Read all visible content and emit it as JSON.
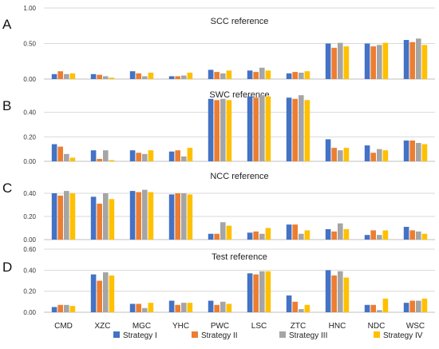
{
  "chart_data": {
    "type": "bar",
    "categories": [
      "CMD",
      "XZC",
      "MGC",
      "YHC",
      "PWC",
      "LSC",
      "ZTC",
      "HNC",
      "NDC",
      "WSC"
    ],
    "legend": {
      "placement": "bottom"
    },
    "series_styles": [
      {
        "name": "Strategy I",
        "color": "#4472c4"
      },
      {
        "name": "Strategy II",
        "color": "#ed7d31"
      },
      {
        "name": "Strategy III",
        "color": "#a5a5a5"
      },
      {
        "name": "Strategy IV",
        "color": "#ffc000"
      }
    ],
    "panels": [
      {
        "letter": "A",
        "title": "SCC reference",
        "ylim": [
          0,
          1.0
        ],
        "yticks": [
          "0.00",
          "0.50",
          "1.00"
        ],
        "ytick_values": [
          0,
          0.5,
          1.0
        ],
        "series": [
          {
            "name": "Strategy I",
            "values": [
              0.07,
              0.07,
              0.11,
              0.04,
              0.13,
              0.12,
              0.08,
              0.5,
              0.5,
              0.55
            ]
          },
          {
            "name": "Strategy II",
            "values": [
              0.11,
              0.06,
              0.08,
              0.04,
              0.1,
              0.1,
              0.1,
              0.44,
              0.46,
              0.52
            ]
          },
          {
            "name": "Strategy III",
            "values": [
              0.07,
              0.04,
              0.04,
              0.05,
              0.08,
              0.16,
              0.09,
              0.51,
              0.48,
              0.57
            ]
          },
          {
            "name": "Strategy IV",
            "values": [
              0.08,
              0.02,
              0.09,
              0.09,
              0.12,
              0.12,
              0.11,
              0.46,
              0.51,
              0.48
            ]
          }
        ]
      },
      {
        "letter": "B",
        "title": "SWC reference",
        "ylim": [
          0,
          0.6
        ],
        "yticks": [
          "0.00",
          "0.20",
          "0.40"
        ],
        "ytick_values": [
          0,
          0.2,
          0.4
        ],
        "series": [
          {
            "name": "Strategy I",
            "values": [
              0.14,
              0.09,
              0.09,
              0.08,
              0.51,
              0.53,
              0.52,
              0.18,
              0.13,
              0.17
            ]
          },
          {
            "name": "Strategy II",
            "values": [
              0.12,
              0.02,
              0.07,
              0.09,
              0.5,
              0.52,
              0.51,
              0.11,
              0.07,
              0.17
            ]
          },
          {
            "name": "Strategy III",
            "values": [
              0.06,
              0.09,
              0.06,
              0.04,
              0.51,
              0.54,
              0.54,
              0.09,
              0.1,
              0.15
            ]
          },
          {
            "name": "Strategy IV",
            "values": [
              0.03,
              0.01,
              0.09,
              0.11,
              0.5,
              0.53,
              0.5,
              0.11,
              0.09,
              0.14
            ]
          }
        ]
      },
      {
        "letter": "C",
        "title": "NCC reference",
        "ylim": [
          0,
          0.6
        ],
        "yticks": [
          "0.00",
          "0.20",
          "0.40"
        ],
        "ytick_values": [
          0,
          0.2,
          0.4
        ],
        "series": [
          {
            "name": "Strategy I",
            "values": [
              0.4,
              0.37,
              0.42,
              0.39,
              0.05,
              0.06,
              0.13,
              0.09,
              0.04,
              0.11
            ]
          },
          {
            "name": "Strategy II",
            "values": [
              0.38,
              0.31,
              0.41,
              0.4,
              0.05,
              0.07,
              0.13,
              0.07,
              0.08,
              0.08
            ]
          },
          {
            "name": "Strategy III",
            "values": [
              0.42,
              0.4,
              0.43,
              0.4,
              0.15,
              0.05,
              0.05,
              0.14,
              0.04,
              0.07
            ]
          },
          {
            "name": "Strategy IV",
            "values": [
              0.4,
              0.35,
              0.41,
              0.39,
              0.12,
              0.1,
              0.08,
              0.09,
              0.08,
              0.05
            ]
          }
        ]
      },
      {
        "letter": "D",
        "title": "Test reference",
        "ylim": [
          0,
          0.6
        ],
        "yticks": [
          "0.00",
          "0.20",
          "0.40",
          "0.60"
        ],
        "ytick_values": [
          0,
          0.2,
          0.4,
          0.6
        ],
        "series": [
          {
            "name": "Strategy I",
            "values": [
              0.05,
              0.36,
              0.08,
              0.11,
              0.11,
              0.37,
              0.16,
              0.4,
              0.07,
              0.09
            ]
          },
          {
            "name": "Strategy II",
            "values": [
              0.07,
              0.3,
              0.08,
              0.07,
              0.07,
              0.36,
              0.1,
              0.35,
              0.07,
              0.11
            ]
          },
          {
            "name": "Strategy III",
            "values": [
              0.07,
              0.38,
              0.04,
              0.09,
              0.1,
              0.39,
              0.03,
              0.39,
              0.02,
              0.11
            ]
          },
          {
            "name": "Strategy IV",
            "values": [
              0.06,
              0.35,
              0.09,
              0.09,
              0.08,
              0.39,
              0.07,
              0.33,
              0.13,
              0.13
            ]
          }
        ]
      }
    ]
  }
}
